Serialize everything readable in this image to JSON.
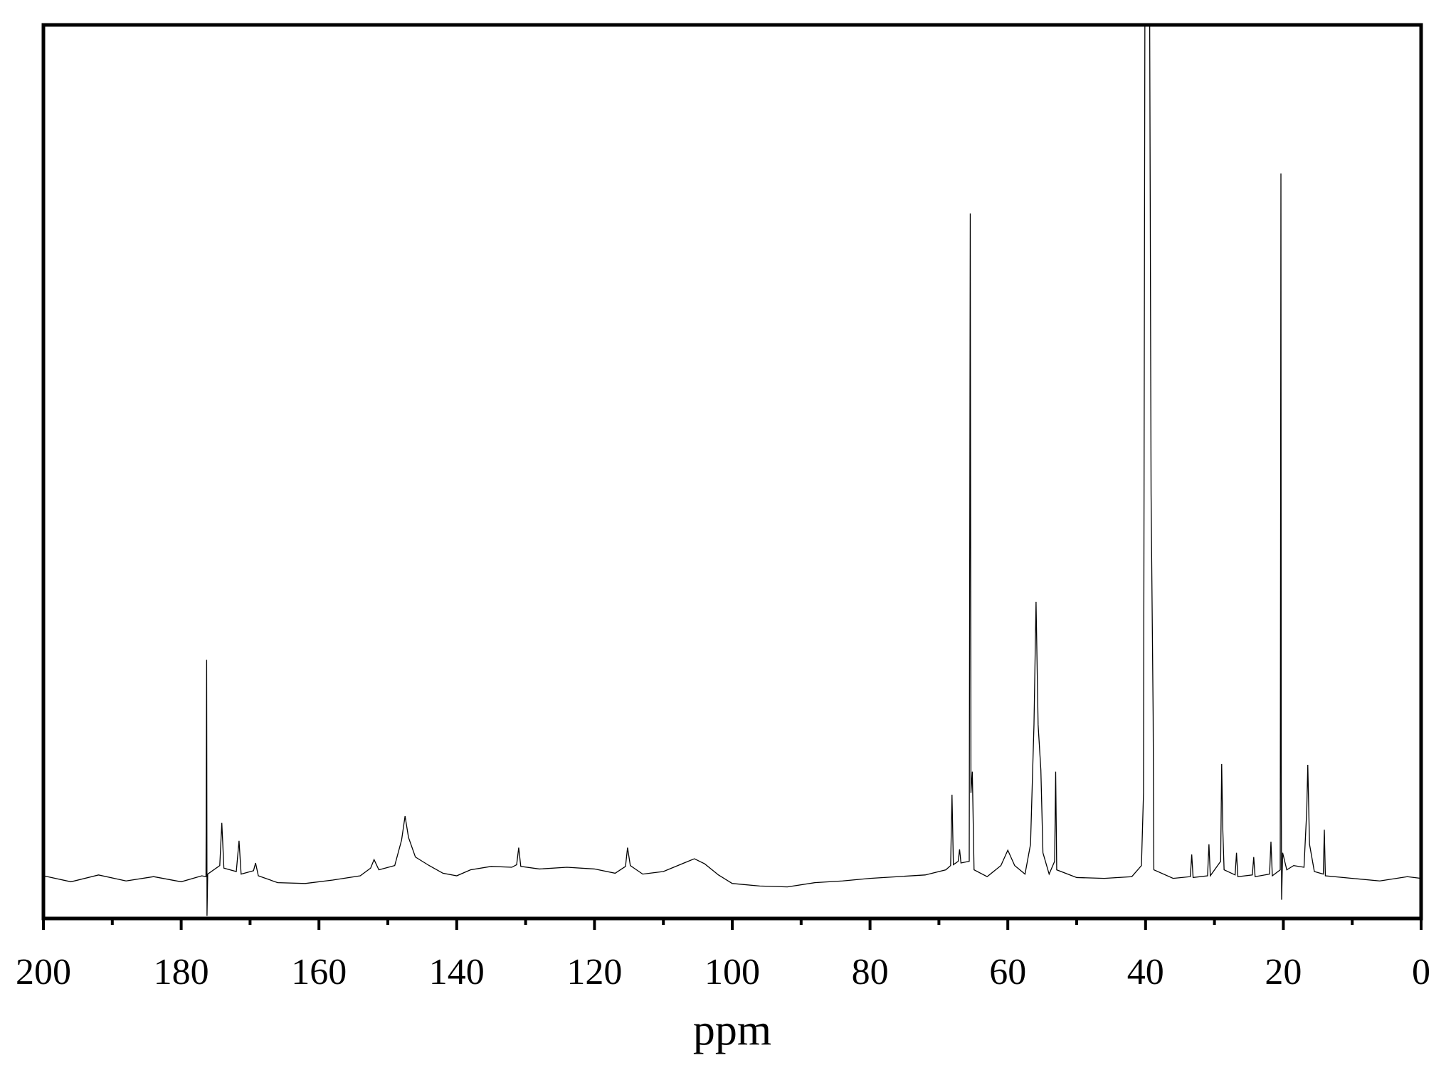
{
  "chart_data": {
    "type": "line",
    "x_label": "ppm",
    "xlim": [
      200,
      0
    ],
    "xticks": [
      200,
      180,
      160,
      140,
      120,
      100,
      80,
      60,
      40,
      20,
      0
    ],
    "xminorticks": [
      190,
      170,
      150,
      130,
      110,
      90,
      70,
      50,
      30,
      10
    ],
    "ylim": [
      -4.7,
      100
    ],
    "color": "#000000",
    "x": [
      200,
      196,
      192,
      188,
      184,
      180,
      177,
      176.4,
      176.3,
      176.25,
      176.15,
      174.4,
      174.1,
      173.8,
      172,
      171.6,
      171.3,
      169.5,
      169.2,
      168.8,
      166,
      162,
      158,
      154,
      152.5,
      152,
      151.3,
      149,
      148,
      147.5,
      147,
      146,
      144,
      142,
      140,
      138,
      135,
      132,
      131.3,
      131,
      130.7,
      128,
      124,
      120,
      117,
      115.5,
      115.2,
      114.8,
      113,
      110,
      107,
      105.5,
      104,
      102,
      100,
      96,
      92,
      88,
      84,
      80,
      76,
      72,
      69,
      68.3,
      68.1,
      67.9,
      67.2,
      67,
      66.8,
      65.6,
      65.45,
      65.35,
      65.15,
      64.9,
      63,
      61,
      60,
      59,
      57.5,
      56.7,
      56.2,
      55.9,
      55.6,
      55.2,
      54.9,
      54,
      53.2,
      53.05,
      52.9,
      50,
      46,
      42,
      40.6,
      40.3,
      40.1,
      39.4,
      39.2,
      38.9,
      38.8,
      36,
      33.5,
      33.3,
      33.1,
      31,
      30.8,
      30.6,
      29.1,
      28.95,
      28.8,
      28.6,
      27,
      26.8,
      26.6,
      24.5,
      24.3,
      24.1,
      22,
      21.8,
      21.6,
      20.45,
      20.35,
      20.3,
      20.25,
      20.1,
      19.5,
      18.5,
      17,
      16.6,
      16.45,
      16.2,
      15.5,
      14.2,
      14.05,
      13.9,
      10,
      6,
      2,
      0
    ],
    "values": [
      0.3,
      -0.4,
      0.4,
      -0.3,
      0.2,
      -0.4,
      0.3,
      0.2,
      25.6,
      -4.4,
      0.5,
      1.5,
      6.5,
      1.2,
      0.8,
      4.4,
      0.5,
      0.9,
      1.8,
      0.3,
      -0.5,
      -0.6,
      -0.2,
      0.3,
      1.2,
      2.2,
      1,
      1.5,
      4.5,
      7.3,
      4.8,
      2.5,
      1.5,
      0.6,
      0.3,
      1,
      1.4,
      1.3,
      1.6,
      3.6,
      1.4,
      1.1,
      1.3,
      1.1,
      0.6,
      1.4,
      3.6,
      1.5,
      0.5,
      0.8,
      1.8,
      2.3,
      1.7,
      0.4,
      -0.6,
      -0.9,
      -1,
      -0.5,
      -0.3,
      0,
      0.2,
      0.4,
      1,
      1.5,
      9.8,
      1.6,
      2,
      3.4,
      1.8,
      2,
      77.9,
      10,
      12.5,
      1,
      0.2,
      1.5,
      3.3,
      1.5,
      0.5,
      4,
      18,
      32.4,
      18,
      12.7,
      3,
      0.5,
      2,
      12.5,
      1,
      0.1,
      0,
      0.2,
      1.5,
      10,
      100,
      100,
      45,
      19,
      1,
      0,
      0.2,
      2.8,
      0.1,
      0.3,
      4,
      0.3,
      2,
      13.4,
      6,
      1,
      0.4,
      3,
      0.2,
      0.4,
      2.5,
      0.2,
      0.5,
      4.3,
      0.3,
      1,
      82.6,
      10,
      -2.5,
      3,
      1,
      1.5,
      1.3,
      8,
      13.3,
      4,
      0.8,
      0.5,
      5.7,
      0.3,
      0,
      -0.3,
      0.2,
      0
    ]
  }
}
